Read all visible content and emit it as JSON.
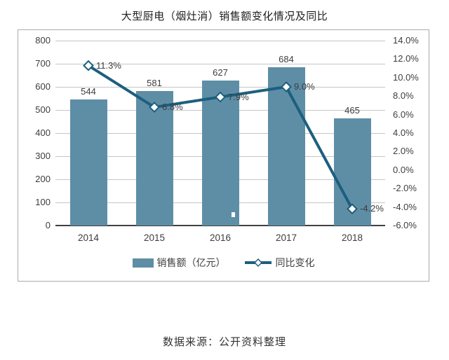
{
  "title": "大型厨电（烟灶消）销售额变化情况及同比",
  "source_note": "数据来源：公开资料整理",
  "colors": {
    "bar": "#5E8EA6",
    "line": "#1C5F7E",
    "marker_fill": "#FFFFFF",
    "grid": "#C6C6C6",
    "axis_line": "#404040",
    "text": "#3D3D3D",
    "border": "#ABABAB"
  },
  "chart_data": {
    "type": "bar",
    "title": "大型厨电（烟灶消）销售额变化情况及同比",
    "categories": [
      "2014",
      "2015",
      "2016",
      "2017",
      "2018"
    ],
    "series": [
      {
        "name": "销售额（亿元）",
        "type": "bar",
        "axis": "left",
        "values": [
          544,
          581,
          627,
          684,
          465
        ],
        "labels": [
          "544",
          "581",
          "627",
          "684",
          "465"
        ]
      },
      {
        "name": "同比变化",
        "type": "line",
        "axis": "right",
        "values": [
          11.3,
          6.8,
          7.9,
          9.0,
          -4.2
        ],
        "labels": [
          "11.3%",
          "6.8%",
          "7.9%",
          "9.0%",
          "-4.2%"
        ]
      }
    ],
    "left_axis": {
      "min": 0,
      "max": 800,
      "step": 100,
      "tick_labels": [
        "800",
        "700",
        "600",
        "500",
        "400",
        "300",
        "200",
        "100",
        "0"
      ]
    },
    "right_axis": {
      "min": -6,
      "max": 14,
      "step": 2,
      "tick_labels": [
        "14.0%",
        "12.0%",
        "10.0%",
        "8.0%",
        "6.0%",
        "4.0%",
        "2.0%",
        "0.0%",
        "-2.0%",
        "-4.0%",
        "-6.0%"
      ]
    },
    "legend": [
      "销售额（亿元）",
      "同比变化"
    ],
    "grid": "horizontal",
    "legend_position": "bottom"
  }
}
